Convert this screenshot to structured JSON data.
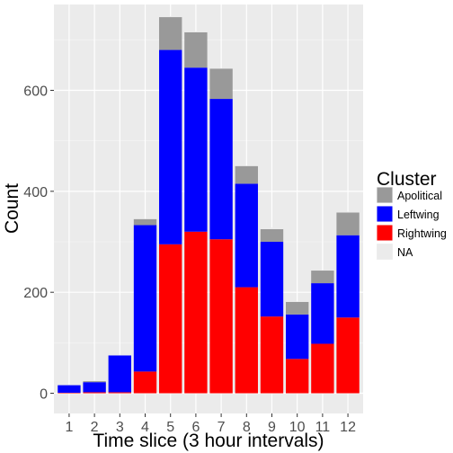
{
  "chart_data": {
    "type": "bar",
    "stacked": true,
    "xlabel": "Time slice (3 hour intervals)",
    "ylabel": "Count",
    "categories": [
      "1",
      "2",
      "3",
      "4",
      "5",
      "6",
      "7",
      "8",
      "9",
      "10",
      "11",
      "12"
    ],
    "ylim": [
      -40,
      770
    ],
    "yticks": [
      0,
      200,
      400,
      600
    ],
    "grid": true,
    "legend": {
      "title": "Cluster",
      "placement": "right",
      "entries": [
        "Apolitical",
        "Leftwing",
        "Rightwing",
        "NA"
      ]
    },
    "series": [
      {
        "name": "Rightwing",
        "color": "#ff0000",
        "values": [
          1,
          2,
          2,
          43,
          295,
          320,
          305,
          210,
          152,
          68,
          98,
          150
        ]
      },
      {
        "name": "Leftwing",
        "color": "#0000ff",
        "values": [
          15,
          20,
          73,
          290,
          385,
          325,
          278,
          205,
          148,
          88,
          120,
          163
        ]
      },
      {
        "name": "Apolitical",
        "color": "#999999",
        "values": [
          0,
          2,
          0,
          12,
          65,
          70,
          60,
          35,
          25,
          25,
          25,
          45
        ]
      },
      {
        "name": "NA",
        "color": "#ebebeb",
        "values": [
          1,
          1,
          1,
          1,
          2,
          2,
          1,
          1,
          3,
          1,
          1,
          2
        ]
      }
    ]
  }
}
